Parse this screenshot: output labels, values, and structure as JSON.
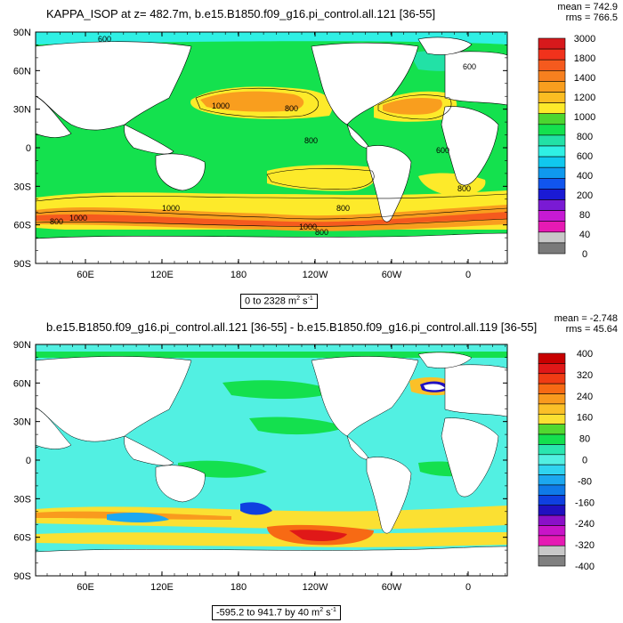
{
  "colors": {
    "land": "#ffffff",
    "frame": "#000000"
  },
  "panel1": {
    "title": "KAPPA_ISOP at z= 482.7m, b.e15.B1850.f09_g16.pi_control.all.121 [36-55]",
    "stat_mean": "mean = 742.9",
    "stat_rms": "rms = 766.5",
    "range_prefix": "0 to 2328 m",
    "range_sup": "2",
    "range_mid": " s",
    "range_sup2": "-1",
    "lat_labels": [
      "90N",
      "60N",
      "30N",
      "0",
      "30S",
      "60S",
      "90S"
    ],
    "lon_labels": [
      "60E",
      "120E",
      "180",
      "120W",
      "60W",
      "0"
    ],
    "contour_labels": [
      "600",
      "800",
      "1000",
      "800",
      "600",
      "800",
      "1000",
      "800",
      "1000",
      "600",
      "800",
      "1000",
      "800"
    ],
    "colorbar_labels": [
      "3000",
      "1800",
      "1400",
      "1200",
      "1000",
      "800",
      "600",
      "400",
      "200",
      "80",
      "40",
      "0"
    ],
    "colorbar_colors": [
      "#d7191c",
      "#f1321c",
      "#f55a1e",
      "#f7801f",
      "#f99e1e",
      "#fbbd22",
      "#fdea2a",
      "#4cd630",
      "#14e14e",
      "#22e1a6",
      "#2ff0e4",
      "#10c8ee",
      "#0f99ee",
      "#1155ee",
      "#1a1ad4",
      "#7a1ad4",
      "#c61ad4",
      "#e61ab4",
      "#c8c8c8",
      "#7a7a7a"
    ]
  },
  "panel2": {
    "title": "b.e15.B1850.f09_g16.pi_control.all.121 [36-55] - b.e15.B1850.f09_g16.pi_control.all.119 [36-55]",
    "stat_mean": "mean = -2.748",
    "stat_rms": "rms = 45.64",
    "range_prefix": "-595.2 to 941.7 by 40 m",
    "range_sup": "2",
    "range_mid": " s",
    "range_sup2": "-1",
    "lat_labels": [
      "90N",
      "60N",
      "30N",
      "0",
      "30S",
      "60S",
      "90S"
    ],
    "lon_labels": [
      "60E",
      "120E",
      "180",
      "120W",
      "60W",
      "0"
    ],
    "colorbar_labels": [
      "400",
      "320",
      "240",
      "160",
      "80",
      "0",
      "-80",
      "-160",
      "-240",
      "-320",
      "-400"
    ],
    "colorbar_colors": [
      "#c80000",
      "#e01818",
      "#f03c14",
      "#f76a14",
      "#f99a1e",
      "#fbc028",
      "#fbe032",
      "#52d830",
      "#14e04e",
      "#2ae6b0",
      "#52f0e2",
      "#30d4f0",
      "#1ca8f0",
      "#0f7ae8",
      "#0f40e0",
      "#2010c0",
      "#8a10c8",
      "#c814c8",
      "#e61ab4",
      "#c8c8c8",
      "#808080"
    ]
  }
}
